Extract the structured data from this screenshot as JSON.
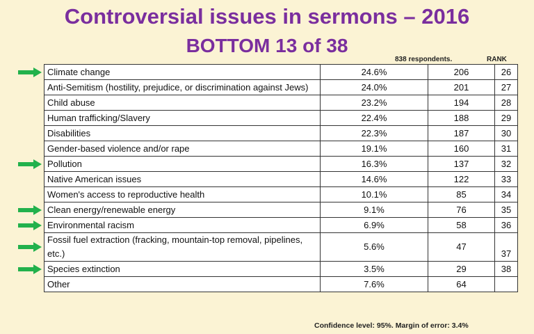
{
  "title_line1": "Controversial issues in sermons – 2016",
  "title_line2": "BOTTOM 13 of 38",
  "header_respondents": "838 respondents.",
  "header_rank": "RANK",
  "arrow_color": "#22b14c",
  "rows": [
    {
      "issue": "Climate change",
      "pct": "24.6%",
      "count": "206",
      "rank": "26",
      "arrow": true
    },
    {
      "issue": "Anti-Semitism (hostility, prejudice, or discrimination against Jews)",
      "pct": "24.0%",
      "count": "201",
      "rank": "27",
      "arrow": false
    },
    {
      "issue": "Child abuse",
      "pct": "23.2%",
      "count": "194",
      "rank": "28",
      "arrow": false
    },
    {
      "issue": "Human trafficking/Slavery",
      "pct": "22.4%",
      "count": "188",
      "rank": "29",
      "arrow": false
    },
    {
      "issue": "Disabilities",
      "pct": "22.3%",
      "count": "187",
      "rank": "30",
      "arrow": false
    },
    {
      "issue": "Gender-based violence and/or rape",
      "pct": "19.1%",
      "count": "160",
      "rank": "31",
      "arrow": false
    },
    {
      "issue": "Pollution",
      "pct": "16.3%",
      "count": "137",
      "rank": "32",
      "arrow": true
    },
    {
      "issue": "Native American issues",
      "pct": "14.6%",
      "count": "122",
      "rank": "33",
      "arrow": false
    },
    {
      "issue": "Women's access to reproductive health",
      "pct": "10.1%",
      "count": "85",
      "rank": "34",
      "arrow": false
    },
    {
      "issue": "Clean energy/renewable energy",
      "pct": "9.1%",
      "count": "76",
      "rank": "35",
      "arrow": true
    },
    {
      "issue": "Environmental racism",
      "pct": "6.9%",
      "count": "58",
      "rank": "36",
      "arrow": true
    },
    {
      "issue": "Fossil fuel extraction (fracking, mountain-top removal, pipelines, etc.)",
      "pct": "5.6%",
      "count": "47",
      "rank": "37",
      "arrow": true
    },
    {
      "issue": "Species extinction",
      "pct": "3.5%",
      "count": "29",
      "rank": "38",
      "arrow": true
    },
    {
      "issue": "Other",
      "pct": "7.6%",
      "count": "64",
      "rank": "",
      "arrow": false
    }
  ],
  "footer": "Confidence level: 95%. Margin of error: 3.4%"
}
